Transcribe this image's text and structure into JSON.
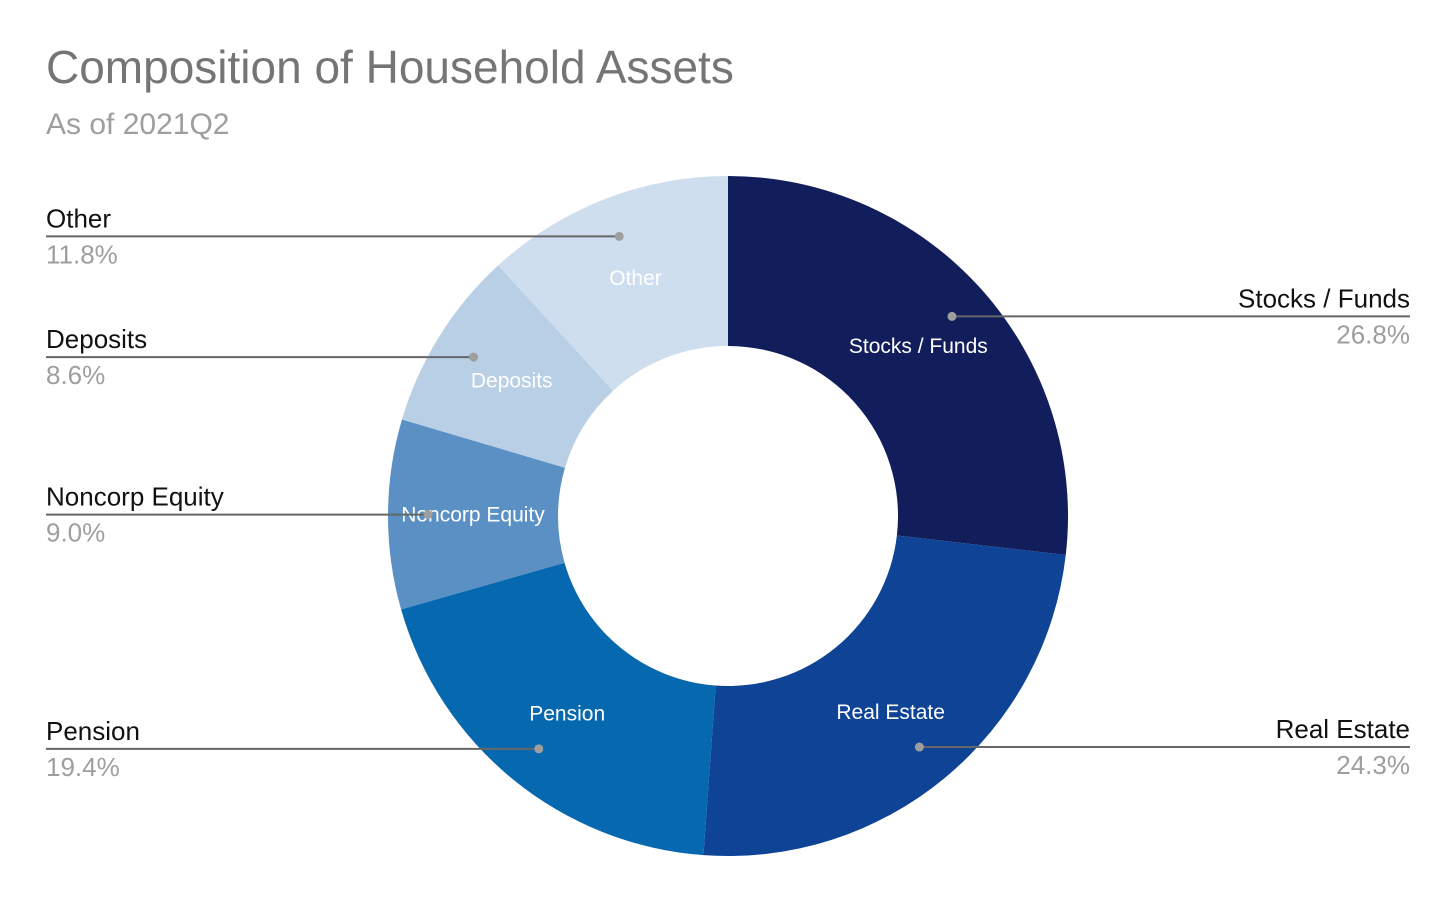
{
  "chart_data": {
    "type": "pie",
    "donut": true,
    "title": "Composition of Household Assets",
    "subtitle": "As of 2021Q2",
    "slices": [
      {
        "label": "Stocks / Funds",
        "value": 26.8,
        "display": "26.8%",
        "color": "#121e5b"
      },
      {
        "label": "Real Estate",
        "value": 24.3,
        "display": "24.3%",
        "color": "#0f4396"
      },
      {
        "label": "Pension",
        "value": 19.4,
        "display": "19.4%",
        "color": "#0668ae"
      },
      {
        "label": "Noncorp Equity",
        "value": 9.0,
        "display": "9.0%",
        "color": "#5a90c4"
      },
      {
        "label": "Deposits",
        "value": 8.6,
        "display": "8.6%",
        "color": "#b8cfe6"
      },
      {
        "label": "Other",
        "value": 11.8,
        "display": "11.8%",
        "color": "#cfdeee"
      }
    ],
    "start_angle": "12 o'clock",
    "direction": "clockwise",
    "legend": "callout labels on left and right"
  }
}
